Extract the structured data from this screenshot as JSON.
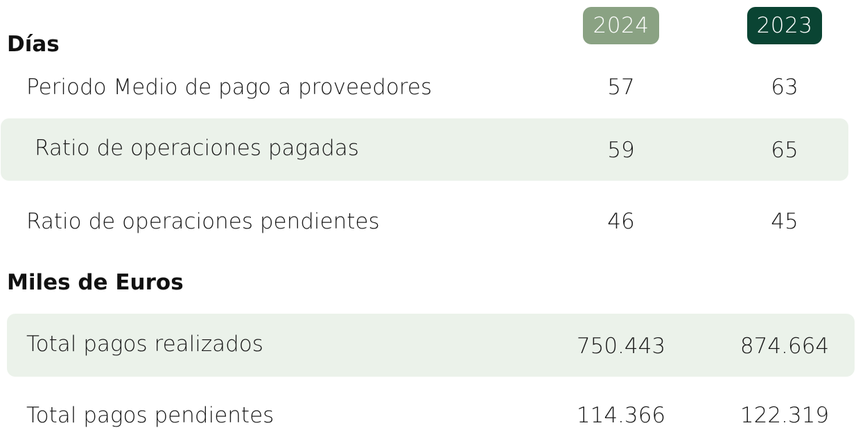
{
  "years": {
    "current": "2024",
    "previous": "2023"
  },
  "colors": {
    "current_pill": "#8aa283",
    "previous_pill": "#0a4433",
    "band": "#ebf2ea"
  },
  "dias": {
    "title": "Días",
    "rows": [
      {
        "label": "Periodo Medio de pago a proveedores",
        "v2024": "57",
        "v2023": "63"
      },
      {
        "label": "Ratio de operaciones pagadas",
        "v2024": "59",
        "v2023": "65"
      },
      {
        "label": "Ratio de operaciones pendientes",
        "v2024": "46",
        "v2023": "45"
      }
    ]
  },
  "miles": {
    "title": "Miles de Euros",
    "rows": [
      {
        "label": "Total pagos realizados",
        "v2024": "750.443",
        "v2023": "874.664"
      },
      {
        "label": "Total pagos pendientes",
        "v2024": "114.366",
        "v2023": "122.319"
      }
    ]
  }
}
